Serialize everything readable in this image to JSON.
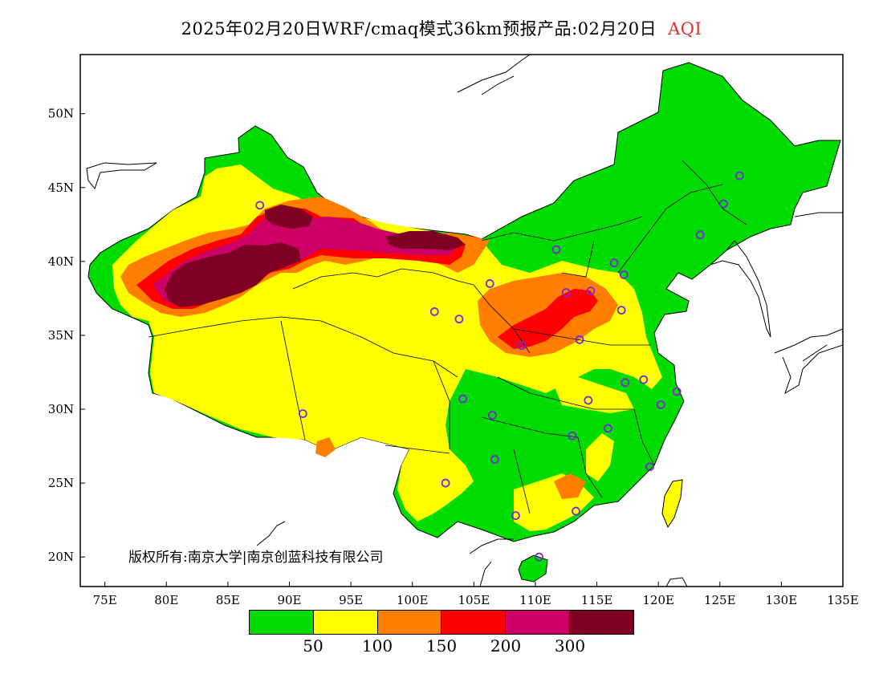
{
  "title": {
    "text": "2025年02月20日WRF/cmaq模式36km预报产品:02月20日",
    "aqi": "AQI"
  },
  "copyright": "版权所有:南京大学|南京创蓝科技有限公司",
  "axes": {
    "lon_ticks": [
      "75E",
      "80E",
      "85E",
      "90E",
      "95E",
      "100E",
      "105E",
      "110E",
      "115E",
      "120E",
      "125E",
      "130E",
      "135E"
    ],
    "lat_ticks": [
      "20N",
      "25N",
      "30N",
      "35N",
      "40N",
      "45N",
      "50N"
    ],
    "lon_range": [
      73,
      135
    ],
    "lat_range": [
      18,
      54
    ]
  },
  "legend": {
    "colors": [
      "#00dc00",
      "#ffff00",
      "#ff7e00",
      "#ff0000",
      "#cc0066",
      "#7e0023"
    ],
    "labels": [
      "50",
      "100",
      "150",
      "200",
      "300"
    ]
  },
  "colors": {
    "good": "#00dc00",
    "moderate": "#ffff00",
    "usg": "#ff7e00",
    "unhealthy": "#ff0000",
    "very_unhealthy": "#cc0066",
    "hazardous": "#7e0023",
    "station_marker": "#7a28d8",
    "title_accent": "#e0302f"
  },
  "stations": [
    [
      87.6,
      43.8
    ],
    [
      101.8,
      36.6
    ],
    [
      103.8,
      36.1
    ],
    [
      106.3,
      38.5
    ],
    [
      111.7,
      40.8
    ],
    [
      123.4,
      41.8
    ],
    [
      125.3,
      43.9
    ],
    [
      126.6,
      45.8
    ],
    [
      116.4,
      39.9
    ],
    [
      117.2,
      39.1
    ],
    [
      114.5,
      38.0
    ],
    [
      112.5,
      37.9
    ],
    [
      117.0,
      36.7
    ],
    [
      113.6,
      34.7
    ],
    [
      108.9,
      34.3
    ],
    [
      104.1,
      30.7
    ],
    [
      106.5,
      29.6
    ],
    [
      114.3,
      30.6
    ],
    [
      117.3,
      31.8
    ],
    [
      118.8,
      32.0
    ],
    [
      120.2,
      30.3
    ],
    [
      121.5,
      31.2
    ],
    [
      115.9,
      28.7
    ],
    [
      113.0,
      28.2
    ],
    [
      106.7,
      26.6
    ],
    [
      102.7,
      25.0
    ],
    [
      108.4,
      22.8
    ],
    [
      113.3,
      23.1
    ],
    [
      119.3,
      26.1
    ],
    [
      110.3,
      20.0
    ],
    [
      91.1,
      29.7
    ]
  ]
}
